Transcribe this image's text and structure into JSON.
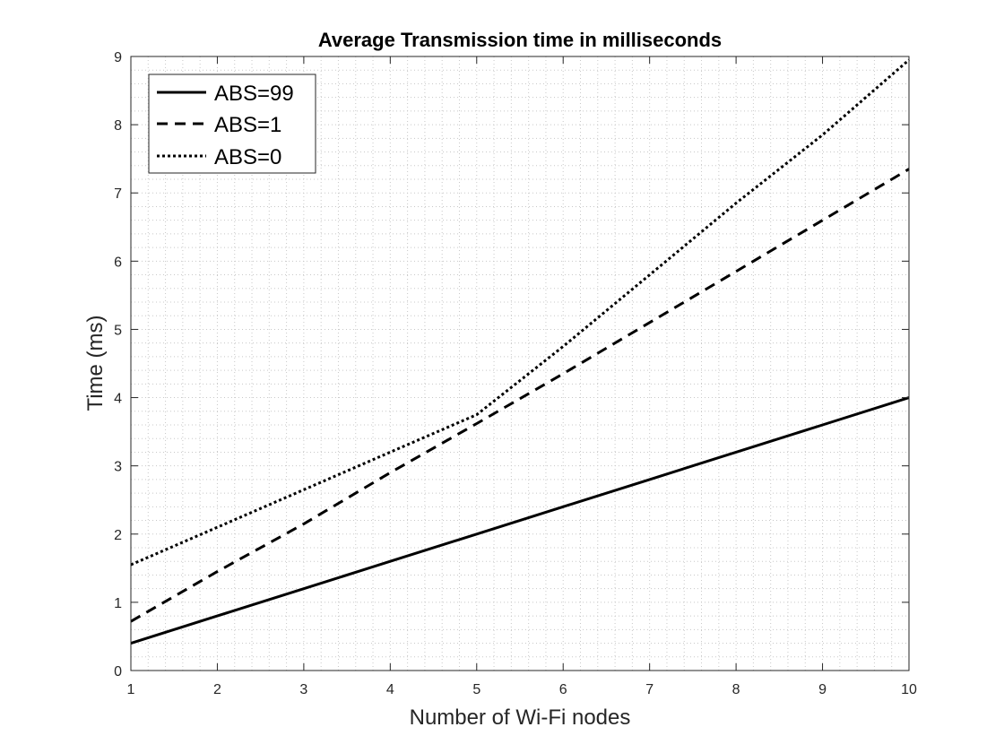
{
  "chart_data": {
    "type": "line",
    "title": "Average Transmission time in milliseconds",
    "xlabel": "Number of Wi-Fi nodes",
    "ylabel": "Time (ms)",
    "xlim": [
      1,
      10
    ],
    "ylim": [
      0,
      9
    ],
    "xticks": [
      "1",
      "2",
      "3",
      "4",
      "5",
      "6",
      "7",
      "8",
      "9",
      "10"
    ],
    "yticks": [
      "0",
      "1",
      "2",
      "3",
      "4",
      "5",
      "6",
      "7",
      "8",
      "9"
    ],
    "grid": "minor dotted",
    "legend_position": "top-left",
    "series": [
      {
        "name": "ABS=99",
        "style": "solid",
        "color": "#000000",
        "x": [
          1,
          2,
          3,
          4,
          5,
          6,
          7,
          8,
          9,
          10
        ],
        "y": [
          0.4,
          0.8,
          1.2,
          1.6,
          2.0,
          2.4,
          2.8,
          3.2,
          3.6,
          4.0
        ]
      },
      {
        "name": "ABS=1",
        "style": "dashed",
        "color": "#000000",
        "x": [
          1,
          2,
          3,
          4,
          5,
          6,
          7,
          8,
          9,
          10
        ],
        "y": [
          0.72,
          1.45,
          2.15,
          2.9,
          3.62,
          4.35,
          5.1,
          5.85,
          6.6,
          7.35
        ]
      },
      {
        "name": "ABS=0",
        "style": "dotted",
        "color": "#000000",
        "x": [
          1,
          2,
          3,
          4,
          5,
          6,
          7,
          8,
          9,
          10
        ],
        "y": [
          1.55,
          2.1,
          2.65,
          3.2,
          3.75,
          4.75,
          5.8,
          6.85,
          7.85,
          8.95
        ]
      }
    ]
  }
}
